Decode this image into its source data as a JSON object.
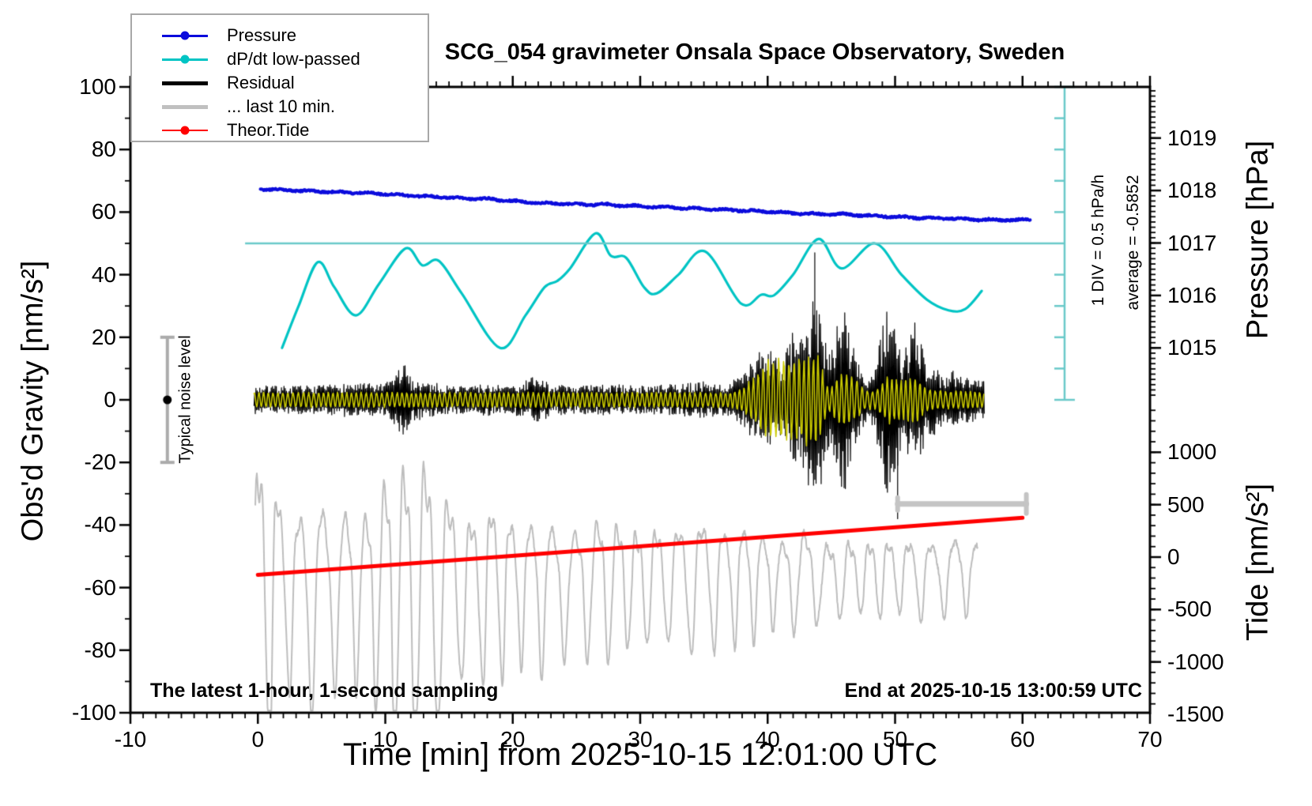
{
  "annotations": {
    "noise_label": "Typical noise level",
    "div_scale": "1 DIV = 0.5 hPa/h",
    "average": "average = -0.5852",
    "bottom_left": "The latest 1-hour, 1-second sampling",
    "bottom_right": "End at 2025-10-15 13:00:59 UTC"
  },
  "legend": {
    "items": [
      {
        "label": "Pressure",
        "color": "#0b0bdc",
        "thick": 3,
        "marker": true
      },
      {
        "label": "dP/dt low-passed",
        "color": "#00c4c4",
        "thick": 3,
        "marker": true
      },
      {
        "label": "Residual",
        "color": "#000000",
        "thick": 5,
        "marker": false
      },
      {
        "label": "... last 10 min.",
        "color": "#c0c0c0",
        "thick": 5,
        "marker": false
      },
      {
        "label": "Theor.Tide",
        "color": "#ff0000",
        "thick": 2.5,
        "marker": true
      }
    ]
  },
  "chart_data": {
    "type": "line",
    "title": "SCG_054 gravimeter Onsala Space Observatory, Sweden",
    "xlabel": "Time [min] from 2025-10-15 12:01:00 UTC",
    "x_range": [
      -10,
      70
    ],
    "x_ticks": [
      -10,
      0,
      10,
      20,
      30,
      40,
      50,
      60,
      70
    ],
    "x_minor_step": 1,
    "left_axis": {
      "label": "Obs'd Gravity [nm/s²]",
      "range": [
        -100,
        100
      ],
      "ticks": [
        -100,
        -80,
        -60,
        -40,
        -20,
        0,
        20,
        40,
        60,
        80,
        100
      ],
      "minor_step": 10
    },
    "right_axis_pressure": {
      "label": "Pressure [hPa]",
      "ticks": [
        1015,
        1016,
        1017,
        1018,
        1019
      ],
      "minor_step": 0.1
    },
    "right_axis_tide": {
      "label": "Tide [nm/s²]",
      "ticks": [
        -1500,
        -1000,
        -500,
        0,
        500,
        1000
      ],
      "minor_step": 100
    },
    "series": [
      {
        "name": "Pressure",
        "axis": "pressure",
        "color": "#0b0bdc",
        "width": 4,
        "points": [
          [
            0.2,
            1018.03
          ],
          [
            3,
            1018.0
          ],
          [
            6,
            1017.97
          ],
          [
            9,
            1017.95
          ],
          [
            12,
            1017.9
          ],
          [
            14,
            1017.88
          ],
          [
            16,
            1017.85
          ],
          [
            18,
            1017.84
          ],
          [
            20,
            1017.8
          ],
          [
            22,
            1017.76
          ],
          [
            24,
            1017.75
          ],
          [
            26,
            1017.73
          ],
          [
            27,
            1017.74
          ],
          [
            28,
            1017.72
          ],
          [
            30,
            1017.7
          ],
          [
            32,
            1017.68
          ],
          [
            34,
            1017.66
          ],
          [
            36,
            1017.64
          ],
          [
            38,
            1017.62
          ],
          [
            40,
            1017.6
          ],
          [
            42,
            1017.57
          ],
          [
            44,
            1017.55
          ],
          [
            46,
            1017.55
          ],
          [
            48,
            1017.52
          ],
          [
            50,
            1017.5
          ],
          [
            52,
            1017.48
          ],
          [
            54,
            1017.47
          ],
          [
            56,
            1017.45
          ],
          [
            58,
            1017.44
          ],
          [
            60.6,
            1017.44
          ]
        ]
      },
      {
        "name": "dP/dt low-passed",
        "axis": "dpdt_hPa_per_h",
        "color": "#00c4c4",
        "width": 3.2,
        "baseline_gravity": 50,
        "units_per_div": 0.5,
        "gravity_units_per_div": 10,
        "points": [
          [
            1.9,
            -1.67
          ],
          [
            3.2,
            -1.0
          ],
          [
            4.7,
            -0.3
          ],
          [
            6.0,
            -0.7
          ],
          [
            7.7,
            -1.15
          ],
          [
            9.5,
            -0.65
          ],
          [
            11.6,
            -0.08
          ],
          [
            12.9,
            -0.35
          ],
          [
            14.2,
            -0.28
          ],
          [
            16.0,
            -0.8
          ],
          [
            19.0,
            -1.67
          ],
          [
            21.0,
            -1.15
          ],
          [
            22.5,
            -0.7
          ],
          [
            23.5,
            -0.6
          ],
          [
            24.5,
            -0.4
          ],
          [
            26.5,
            0.16
          ],
          [
            27.7,
            -0.2
          ],
          [
            28.9,
            -0.23
          ],
          [
            30.3,
            -0.7
          ],
          [
            31.3,
            -0.8
          ],
          [
            33.0,
            -0.5
          ],
          [
            35.1,
            -0.13
          ],
          [
            37.9,
            -0.96
          ],
          [
            39.5,
            -0.82
          ],
          [
            40.5,
            -0.83
          ],
          [
            42.0,
            -0.5
          ],
          [
            44.0,
            0.07
          ],
          [
            45.8,
            -0.4
          ],
          [
            48.4,
            0.0
          ],
          [
            50.5,
            -0.5
          ],
          [
            52.5,
            -0.9
          ],
          [
            54.2,
            -1.07
          ],
          [
            55.5,
            -1.05
          ],
          [
            56.8,
            -0.76
          ]
        ]
      },
      {
        "name": "Residual",
        "axis": "gravity",
        "color": "#000000",
        "width": 1.2,
        "center": 0,
        "t_start": -0.3,
        "t_end": 57.0,
        "seed": 7,
        "amplitude_envelope": [
          [
            -0.3,
            4.5
          ],
          [
            5,
            4.5
          ],
          [
            7,
            5.5
          ],
          [
            10,
            5
          ],
          [
            10.8,
            9
          ],
          [
            11.5,
            12
          ],
          [
            12,
            7
          ],
          [
            15,
            4.5
          ],
          [
            18,
            5
          ],
          [
            20,
            4.5
          ],
          [
            22,
            8
          ],
          [
            23,
            5
          ],
          [
            25,
            4.5
          ],
          [
            28,
            5
          ],
          [
            30,
            4.5
          ],
          [
            33,
            5
          ],
          [
            35,
            6
          ],
          [
            36,
            5
          ],
          [
            37,
            6
          ],
          [
            38,
            8
          ],
          [
            39,
            14
          ],
          [
            40,
            18
          ],
          [
            40.5,
            14
          ],
          [
            41,
            12
          ],
          [
            41.5,
            16
          ],
          [
            42,
            22
          ],
          [
            42.5,
            18
          ],
          [
            43,
            26
          ],
          [
            43.5,
            32
          ],
          [
            44,
            30
          ],
          [
            44.5,
            24
          ],
          [
            45,
            18
          ],
          [
            45.5,
            26
          ],
          [
            46,
            30
          ],
          [
            46.5,
            22
          ],
          [
            47,
            14
          ],
          [
            47.5,
            9
          ],
          [
            48,
            7
          ],
          [
            48.5,
            12
          ],
          [
            49,
            24
          ],
          [
            49.5,
            32
          ],
          [
            50,
            26
          ],
          [
            50.5,
            14
          ],
          [
            51,
            18
          ],
          [
            51.5,
            26
          ],
          [
            52,
            20
          ],
          [
            52.5,
            12
          ],
          [
            53,
            13
          ],
          [
            53.5,
            9
          ],
          [
            54,
            7
          ],
          [
            54.5,
            10
          ],
          [
            55,
            7
          ],
          [
            55.5,
            8
          ],
          [
            56,
            10
          ],
          [
            56.5,
            7
          ],
          [
            57,
            6
          ]
        ],
        "spikes": [
          [
            43.7,
            47
          ],
          [
            50.2,
            -38
          ]
        ]
      },
      {
        "name": "residual-smoothed-overlay",
        "axis": "gravity",
        "color": "#c9c900",
        "width": 1.6,
        "center": 0,
        "t_start": -0.3,
        "t_end": 57.0,
        "seed": 11,
        "cycles_per_min": 2.6,
        "amplitude_envelope": [
          [
            -0.3,
            2.5
          ],
          [
            37,
            2.5
          ],
          [
            38,
            4
          ],
          [
            39,
            8
          ],
          [
            40,
            13
          ],
          [
            41,
            14
          ],
          [
            42,
            13
          ],
          [
            43,
            15
          ],
          [
            44,
            15
          ],
          [
            44.6,
            5
          ],
          [
            45,
            4
          ],
          [
            45.5,
            8
          ],
          [
            46,
            9
          ],
          [
            47,
            7
          ],
          [
            47.6,
            3.5
          ],
          [
            48.4,
            3
          ],
          [
            49,
            6
          ],
          [
            49.5,
            8
          ],
          [
            50,
            7
          ],
          [
            51,
            7
          ],
          [
            51.5,
            8
          ],
          [
            52,
            6
          ],
          [
            52.5,
            4
          ],
          [
            53,
            3.5
          ],
          [
            54,
            3
          ],
          [
            55,
            3
          ],
          [
            56,
            2.8
          ],
          [
            57,
            2.5
          ]
        ]
      },
      {
        "name": "... last 10 min.",
        "axis": "gravity",
        "color": "#bdbdbd",
        "width": 2,
        "t_start": -0.2,
        "t_end": 56.5,
        "seed": 3,
        "center_start": -60.5,
        "center_end": -54.5,
        "period_min": 1.65,
        "amplitude_envelope": [
          [
            -0.2,
            45
          ],
          [
            1,
            43
          ],
          [
            2,
            28
          ],
          [
            3,
            25
          ],
          [
            4,
            32
          ],
          [
            5,
            30
          ],
          [
            6,
            25
          ],
          [
            7,
            28
          ],
          [
            8,
            25
          ],
          [
            9,
            28
          ],
          [
            10,
            38
          ],
          [
            11,
            42
          ],
          [
            12,
            40
          ],
          [
            13,
            43
          ],
          [
            14,
            38
          ],
          [
            15,
            30
          ],
          [
            16,
            25
          ],
          [
            17,
            22
          ],
          [
            18,
            28
          ],
          [
            19,
            25
          ],
          [
            20,
            22
          ],
          [
            21,
            20
          ],
          [
            22,
            24
          ],
          [
            23,
            20
          ],
          [
            25,
            18
          ],
          [
            27,
            22
          ],
          [
            29,
            18
          ],
          [
            30,
            16
          ],
          [
            31,
            18
          ],
          [
            32,
            16
          ],
          [
            33,
            18
          ],
          [
            35,
            20
          ],
          [
            36,
            18
          ],
          [
            37,
            16
          ],
          [
            38,
            18
          ],
          [
            39,
            16
          ],
          [
            40,
            14
          ],
          [
            41,
            12
          ],
          [
            42,
            14
          ],
          [
            43,
            16
          ],
          [
            44,
            12
          ],
          [
            45,
            10
          ],
          [
            46,
            12
          ],
          [
            47,
            10
          ],
          [
            48,
            11
          ],
          [
            49,
            12
          ],
          [
            50,
            10
          ],
          [
            51,
            11
          ],
          [
            52,
            12
          ],
          [
            53,
            10
          ],
          [
            54,
            11
          ],
          [
            55,
            12
          ],
          [
            56,
            10
          ],
          [
            56.5,
            10
          ]
        ]
      },
      {
        "name": "Theor.Tide",
        "axis": "tide",
        "color": "#ff0000",
        "width": 5,
        "points": [
          [
            0,
            -170
          ],
          [
            60,
            375
          ]
        ]
      }
    ],
    "dpdt_scale_bar": {
      "position_min": 63.3,
      "top_gravity": 100,
      "bottom_gravity": 0,
      "divisions": 10,
      "baseline_gravity": 50,
      "baseline_extends_to_min": -1.0,
      "color": "#69c9c9"
    },
    "noise_bar": {
      "position_min": -7.1,
      "center_gravity": 0,
      "half_range": 20,
      "color": "#ababab"
    },
    "last10_bar": {
      "x_start": 50.2,
      "x_end": 60.3,
      "gravity": -33.3,
      "color": "#c4c4c4"
    }
  }
}
